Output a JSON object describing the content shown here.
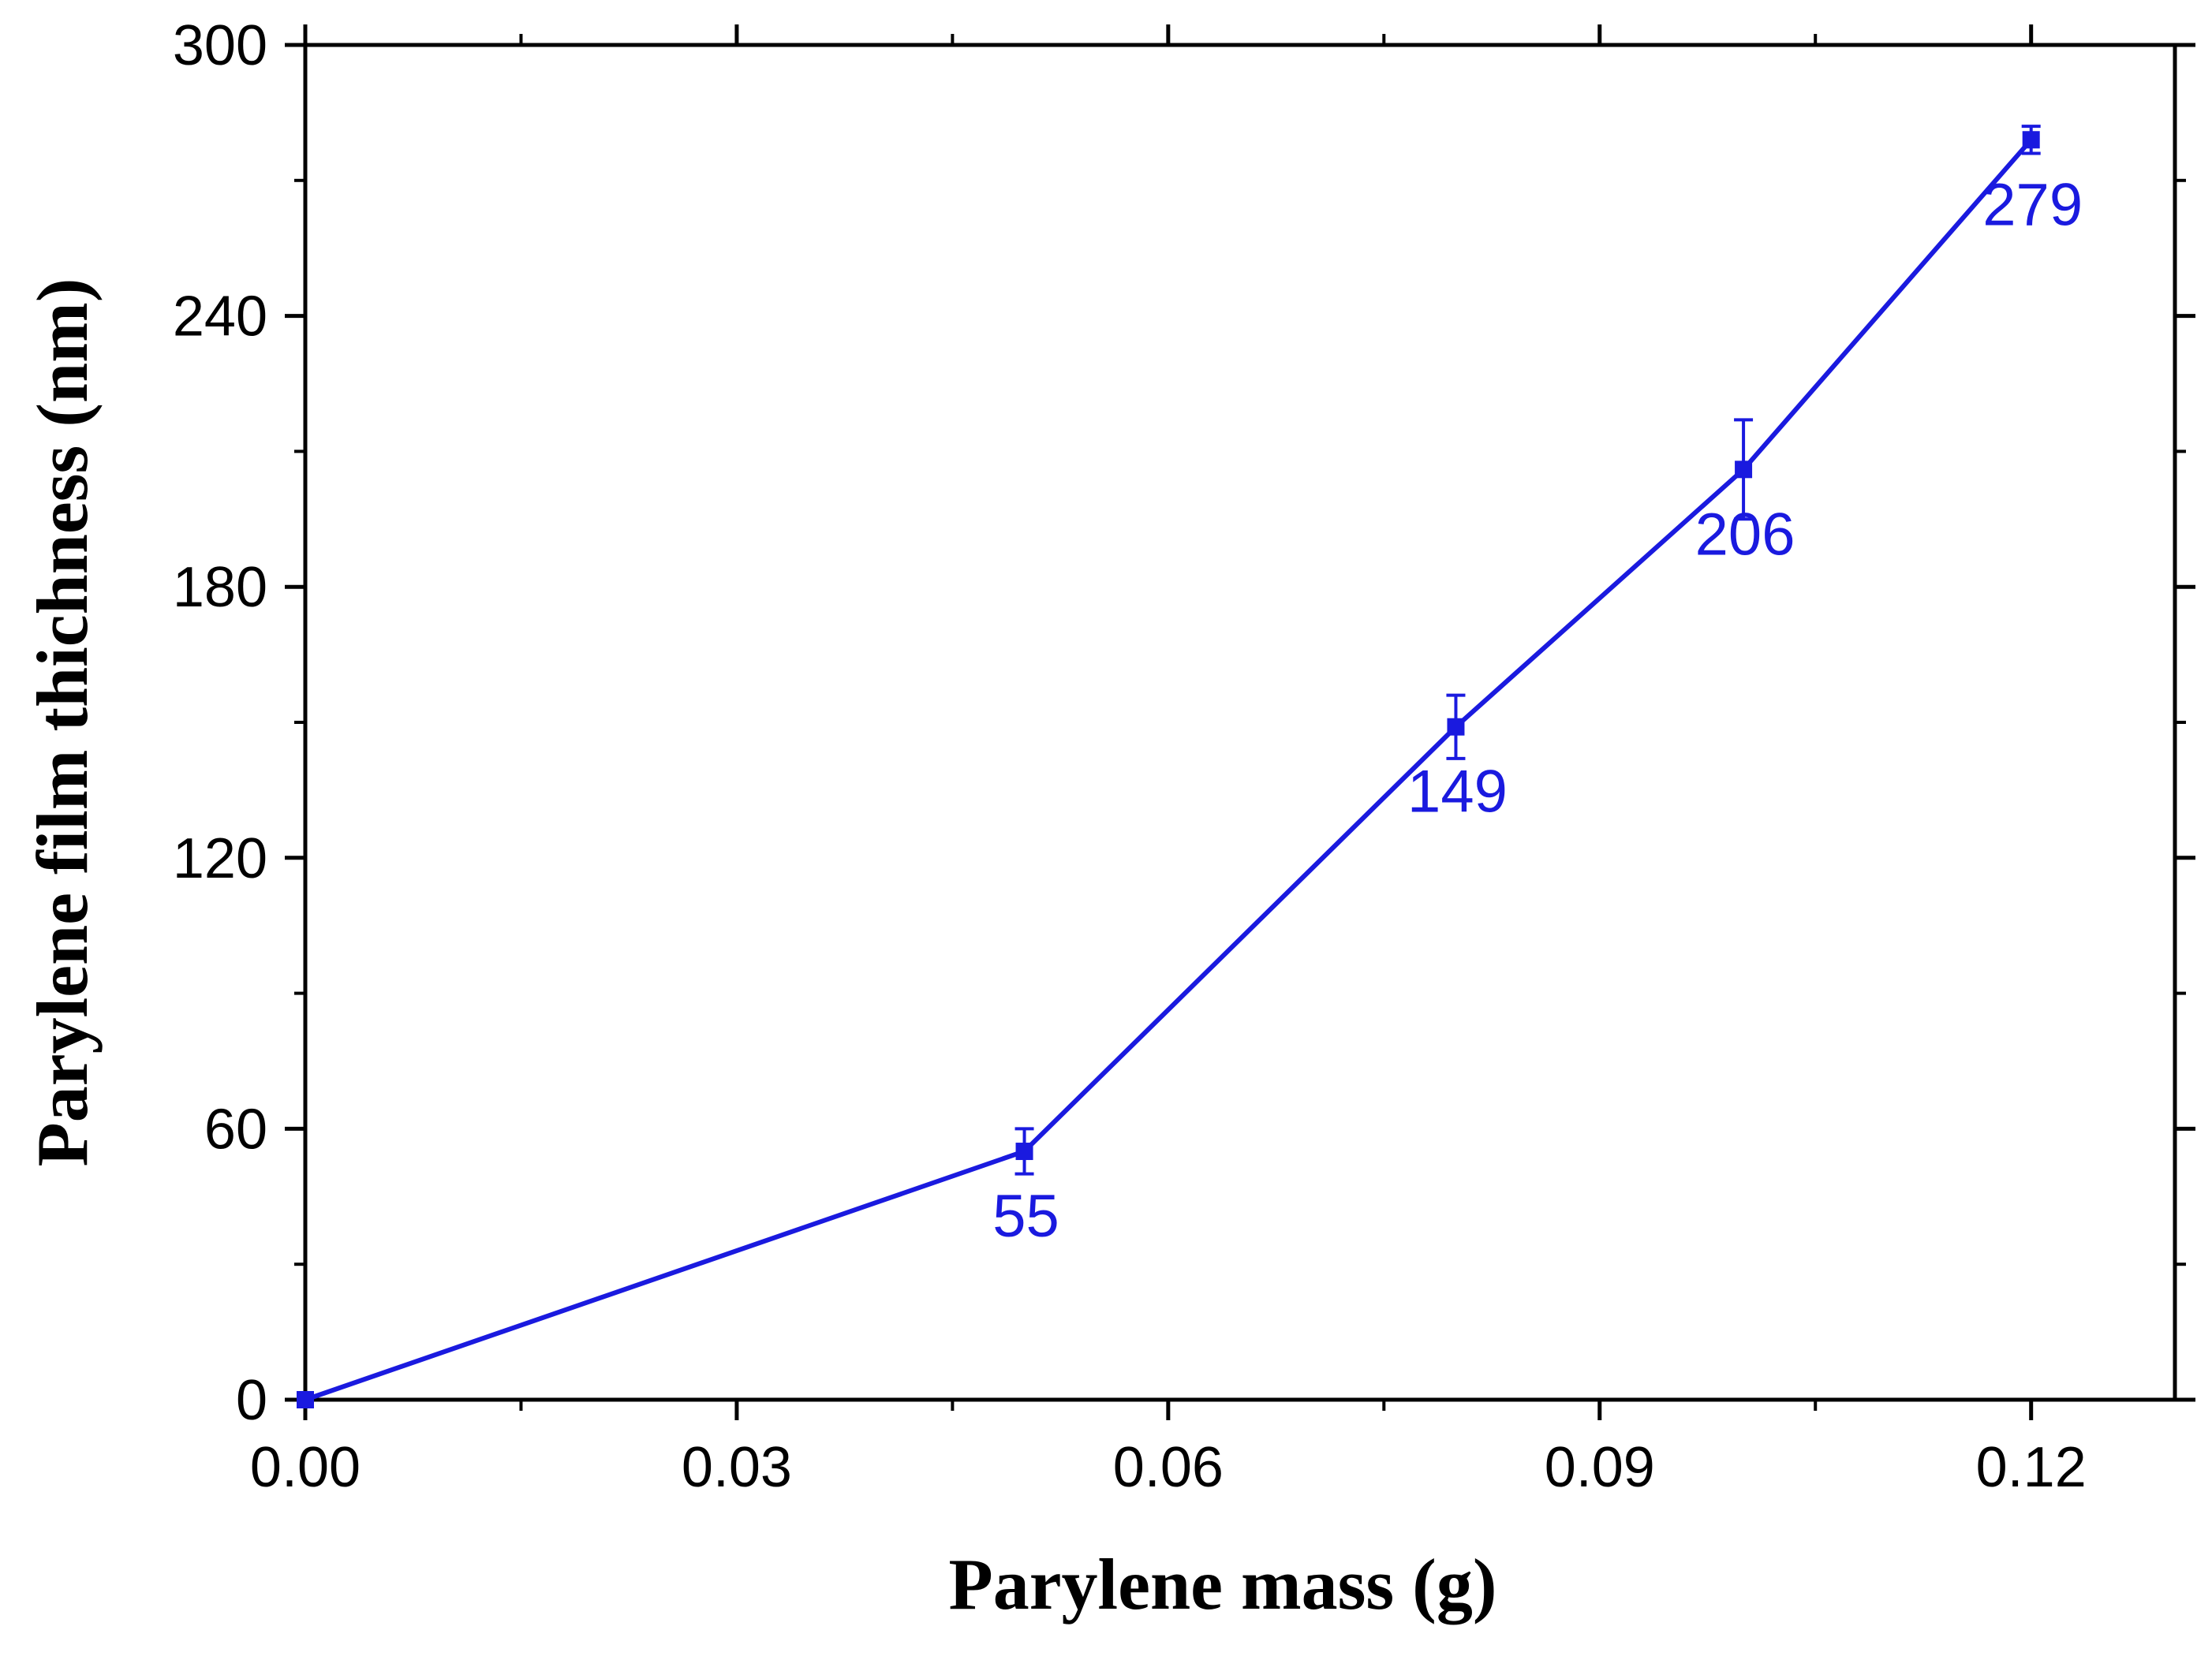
{
  "chart_data": {
    "type": "line",
    "title": "",
    "xlabel": "Parylene mass (g)",
    "ylabel": "Parylene film thichness (nm)",
    "xlim": [
      0,
      0.13
    ],
    "ylim": [
      0,
      300
    ],
    "x_ticks": [
      "0.00",
      "0.03",
      "0.06",
      "0.09",
      "0.12"
    ],
    "x_tick_values": [
      0,
      0.03,
      0.06,
      0.09,
      0.12
    ],
    "y_ticks": [
      "0",
      "60",
      "120",
      "180",
      "240",
      "300"
    ],
    "y_tick_values": [
      0,
      60,
      120,
      180,
      240,
      300
    ],
    "grid": false,
    "legend": "none",
    "series": [
      {
        "color": "#1a1adf",
        "marker": "square",
        "x": [
          0,
          0.05,
          0.08,
          0.1,
          0.12
        ],
        "y": [
          0,
          55,
          149,
          206,
          279
        ],
        "error": [
          0,
          5,
          7,
          11,
          3
        ],
        "data_labels": [
          "",
          "55",
          "149",
          "206",
          "279"
        ]
      }
    ]
  }
}
